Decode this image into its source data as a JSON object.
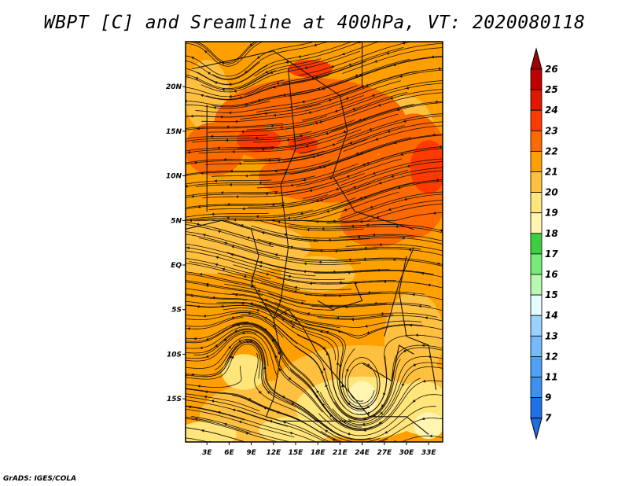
{
  "title": "WBPT [C] and Sreamline at 400hPa, VT: 2020080118",
  "credit": "GrADS: IGES/COLA",
  "map": {
    "lon_range": [
      0,
      35
    ],
    "lat_range": [
      -20,
      25
    ],
    "lat_ticks": [
      {
        "v": 20,
        "label": "20N"
      },
      {
        "v": 15,
        "label": "15N"
      },
      {
        "v": 10,
        "label": "10N"
      },
      {
        "v": 5,
        "label": "5N"
      },
      {
        "v": 0,
        "label": "EQ"
      },
      {
        "v": -5,
        "label": "5S"
      },
      {
        "v": -10,
        "label": "10S"
      },
      {
        "v": -15,
        "label": "15S"
      }
    ],
    "lon_ticks": [
      {
        "v": 3,
        "label": "3E"
      },
      {
        "v": 6,
        "label": "6E"
      },
      {
        "v": 9,
        "label": "9E"
      },
      {
        "v": 12,
        "label": "12E"
      },
      {
        "v": 15,
        "label": "15E"
      },
      {
        "v": 18,
        "label": "18E"
      },
      {
        "v": 21,
        "label": "21E"
      },
      {
        "v": 24,
        "label": "24E"
      },
      {
        "v": 27,
        "label": "27E"
      },
      {
        "v": 30,
        "label": "30E"
      },
      {
        "v": 33,
        "label": "33E"
      }
    ]
  },
  "colorbar": {
    "labels": [
      "26",
      "25",
      "24",
      "23",
      "22",
      "21",
      "20",
      "19",
      "18",
      "17",
      "16",
      "15",
      "14",
      "13",
      "12",
      "11",
      "9",
      "7"
    ],
    "top_arrow_color": "#a00000",
    "bottom_arrow_color": "#1e6ee0",
    "colors": [
      "#c00000",
      "#e01800",
      "#ff3a00",
      "#ff6a00",
      "#ffa000",
      "#ffc040",
      "#ffe57a",
      "#fff5b0",
      "#3cd040",
      "#78ea78",
      "#b8f8b0",
      "#e4fcff",
      "#9ad2ff",
      "#78b8ff",
      "#50a0f8",
      "#3c90f0",
      "#2070e6"
    ]
  }
}
